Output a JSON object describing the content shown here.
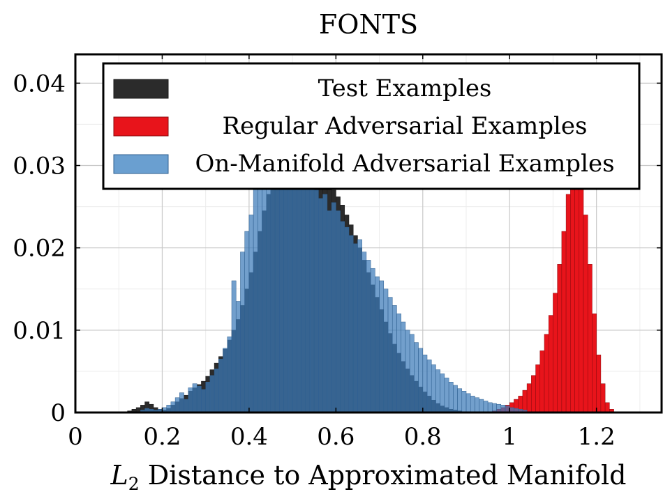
{
  "chart_data": {
    "type": "bar",
    "title": "FONTS",
    "xlabel_var": "L",
    "xlabel_sub": "2",
    "xlabel_rest": " Distance to Approximated Manifold",
    "xlim": [
      0,
      1.35
    ],
    "ylim": [
      0,
      0.0435
    ],
    "x_ticks": [
      0,
      0.2,
      0.4,
      0.6,
      0.8,
      1,
      1.2
    ],
    "x_tick_labels": [
      "0",
      "0.2",
      "0.4",
      "0.6",
      "0.8",
      "1",
      "1.2"
    ],
    "y_ticks": [
      0,
      0.01,
      0.02,
      0.03,
      0.04
    ],
    "y_tick_labels": [
      "0",
      "0.01",
      "0.02",
      "0.03",
      "0.04"
    ],
    "grid": true,
    "legend_position": "top",
    "bin_width": 0.01,
    "series": [
      {
        "name": "Test Examples",
        "color": "#2b2b2b",
        "x": [
          0.12,
          0.13,
          0.14,
          0.15,
          0.16,
          0.17,
          0.18,
          0.19,
          0.2,
          0.21,
          0.22,
          0.23,
          0.24,
          0.25,
          0.26,
          0.27,
          0.28,
          0.29,
          0.3,
          0.31,
          0.32,
          0.33,
          0.34,
          0.35,
          0.36,
          0.37,
          0.38,
          0.39,
          0.4,
          0.41,
          0.42,
          0.43,
          0.44,
          0.45,
          0.46,
          0.47,
          0.48,
          0.49,
          0.5,
          0.51,
          0.52,
          0.53,
          0.54,
          0.55,
          0.56,
          0.57,
          0.58,
          0.59,
          0.6,
          0.61,
          0.62,
          0.63,
          0.64,
          0.65,
          0.66,
          0.67,
          0.68,
          0.69,
          0.7,
          0.71,
          0.72,
          0.73,
          0.74,
          0.75,
          0.76,
          0.77,
          0.78,
          0.79,
          0.8,
          0.81,
          0.82,
          0.83,
          0.84,
          0.85,
          0.86,
          0.87,
          0.88,
          0.89,
          0.9
        ],
        "values": [
          0.0002,
          0.0004,
          0.0006,
          0.0009,
          0.0013,
          0.001,
          0.0006,
          0.0004,
          0.0003,
          0.0005,
          0.0009,
          0.0013,
          0.0017,
          0.0021,
          0.0026,
          0.003,
          0.0034,
          0.0038,
          0.0044,
          0.0052,
          0.006,
          0.0068,
          0.0077,
          0.0088,
          0.01,
          0.0113,
          0.013,
          0.015,
          0.017,
          0.0195,
          0.022,
          0.0245,
          0.0265,
          0.0278,
          0.0275,
          0.0285,
          0.0295,
          0.03,
          0.031,
          0.032,
          0.0325,
          0.0322,
          0.0318,
          0.031,
          0.03,
          0.029,
          0.028,
          0.027,
          0.0262,
          0.0252,
          0.024,
          0.0228,
          0.0215,
          0.02,
          0.0185,
          0.017,
          0.0155,
          0.014,
          0.0125,
          0.011,
          0.0096,
          0.0083,
          0.0072,
          0.0062,
          0.0053,
          0.0045,
          0.0038,
          0.0031,
          0.0025,
          0.002,
          0.0015,
          0.0011,
          0.0008,
          0.0006,
          0.0004,
          0.0003,
          0.0002,
          0.0001,
          0.0001
        ]
      },
      {
        "name": "Regular Adversarial Examples",
        "color": "#e8141b",
        "x": [
          0.96,
          0.97,
          0.98,
          0.99,
          1.0,
          1.01,
          1.02,
          1.03,
          1.04,
          1.05,
          1.06,
          1.07,
          1.08,
          1.09,
          1.1,
          1.11,
          1.12,
          1.13,
          1.14,
          1.15,
          1.16,
          1.17,
          1.18,
          1.19,
          1.2,
          1.21,
          1.22,
          1.23
        ],
        "values": [
          0.0002,
          0.0004,
          0.0006,
          0.0009,
          0.0012,
          0.0016,
          0.002,
          0.0027,
          0.0035,
          0.0045,
          0.0058,
          0.0075,
          0.0095,
          0.0118,
          0.0145,
          0.018,
          0.022,
          0.0265,
          0.03,
          0.032,
          0.029,
          0.024,
          0.018,
          0.012,
          0.007,
          0.0035,
          0.0012,
          0.0004
        ]
      },
      {
        "name": "On-Manifold Adversarial Examples",
        "color": "#6a9fd0",
        "x": [
          0.15,
          0.16,
          0.17,
          0.18,
          0.19,
          0.2,
          0.21,
          0.22,
          0.23,
          0.24,
          0.25,
          0.26,
          0.27,
          0.28,
          0.29,
          0.3,
          0.31,
          0.32,
          0.33,
          0.34,
          0.35,
          0.36,
          0.37,
          0.38,
          0.39,
          0.4,
          0.41,
          0.42,
          0.43,
          0.44,
          0.45,
          0.46,
          0.47,
          0.48,
          0.49,
          0.5,
          0.51,
          0.52,
          0.53,
          0.54,
          0.55,
          0.56,
          0.57,
          0.58,
          0.59,
          0.6,
          0.61,
          0.62,
          0.63,
          0.64,
          0.65,
          0.66,
          0.67,
          0.68,
          0.69,
          0.7,
          0.71,
          0.72,
          0.73,
          0.74,
          0.75,
          0.76,
          0.77,
          0.78,
          0.79,
          0.8,
          0.81,
          0.82,
          0.83,
          0.84,
          0.85,
          0.86,
          0.87,
          0.88,
          0.89,
          0.9,
          0.91,
          0.92,
          0.93,
          0.94,
          0.95,
          0.96,
          0.97,
          0.98,
          0.99,
          1.0,
          1.01,
          1.02,
          1.03
        ],
        "values": [
          0.0003,
          0.0005,
          0.0004,
          0.0003,
          0.0004,
          0.0006,
          0.0009,
          0.0013,
          0.0018,
          0.0024,
          0.0016,
          0.003,
          0.0035,
          0.0032,
          0.0028,
          0.0037,
          0.0045,
          0.0053,
          0.0065,
          0.0078,
          0.0092,
          0.016,
          0.0135,
          0.0195,
          0.022,
          0.024,
          0.03,
          0.033,
          0.0365,
          0.034,
          0.032,
          0.03,
          0.0295,
          0.029,
          0.0305,
          0.033,
          0.032,
          0.031,
          0.0298,
          0.0285,
          0.027,
          0.026,
          0.0265,
          0.0245,
          0.0255,
          0.0245,
          0.0232,
          0.0225,
          0.0215,
          0.0205,
          0.021,
          0.0195,
          0.0185,
          0.0175,
          0.0165,
          0.016,
          0.015,
          0.014,
          0.013,
          0.012,
          0.011,
          0.01,
          0.0095,
          0.0085,
          0.0078,
          0.007,
          0.0064,
          0.0058,
          0.0052,
          0.0047,
          0.0042,
          0.0037,
          0.0033,
          0.0029,
          0.0026,
          0.0023,
          0.002,
          0.0018,
          0.0016,
          0.0014,
          0.0012,
          0.0011,
          0.001,
          0.0009,
          0.0008,
          0.0006,
          0.0005,
          0.0004,
          0.0003
        ]
      }
    ]
  }
}
